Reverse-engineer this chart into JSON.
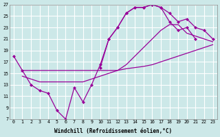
{
  "xlabel": "Windchill (Refroidissement éolien,°C)",
  "bg_color": "#cce8e8",
  "line_color": "#990099",
  "grid_color": "#ffffff",
  "xlim": [
    -0.5,
    23.5
  ],
  "ylim": [
    7,
    27
  ],
  "yticks": [
    7,
    9,
    11,
    13,
    15,
    17,
    19,
    21,
    23,
    25,
    27
  ],
  "xticks": [
    0,
    1,
    2,
    3,
    4,
    5,
    6,
    7,
    8,
    9,
    10,
    11,
    12,
    13,
    14,
    15,
    16,
    17,
    18,
    19,
    20,
    21,
    22,
    23
  ],
  "line1_x": [
    0,
    1,
    2,
    3,
    4,
    5,
    6,
    7,
    8,
    9,
    10,
    11,
    12,
    13,
    14,
    15,
    16,
    17,
    18,
    19,
    20,
    21
  ],
  "line1_y": [
    18.0,
    15.5,
    13.0,
    12.0,
    11.5,
    8.5,
    7.0,
    12.5,
    10.0,
    13.0,
    16.5,
    21.0,
    23.0,
    25.5,
    26.5,
    26.5,
    27.0,
    26.5,
    24.0,
    22.5,
    23.0,
    21.0
  ],
  "line2_x": [
    1,
    2,
    3,
    4,
    5,
    6,
    7,
    8,
    9,
    10,
    11,
    12,
    13,
    14,
    15,
    16,
    17,
    18,
    19,
    20,
    21,
    22,
    23
  ],
  "line2_y": [
    15.5,
    15.5,
    15.5,
    15.5,
    15.5,
    15.5,
    15.5,
    15.5,
    15.5,
    15.5,
    15.5,
    15.5,
    15.8,
    16.0,
    16.2,
    16.5,
    17.0,
    17.5,
    18.0,
    18.5,
    19.0,
    19.5,
    20.0
  ],
  "line3_x": [
    1,
    2,
    3,
    4,
    5,
    6,
    7,
    8,
    9,
    10,
    11,
    12,
    13,
    14,
    15,
    16,
    17,
    18,
    19,
    20,
    21,
    22,
    23
  ],
  "line3_y": [
    14.5,
    14.0,
    13.5,
    13.5,
    13.5,
    13.5,
    13.5,
    13.5,
    14.0,
    14.5,
    15.0,
    15.5,
    16.5,
    18.0,
    19.5,
    21.0,
    22.5,
    23.5,
    23.5,
    22.0,
    21.5,
    21.0,
    20.5
  ],
  "line4_x": [
    10,
    11,
    12,
    13,
    14,
    15,
    16,
    17,
    18,
    19,
    20,
    21,
    22,
    23
  ],
  "line4_y": [
    16.0,
    21.0,
    23.0,
    25.5,
    26.5,
    26.5,
    27.0,
    26.5,
    25.5,
    24.0,
    24.5,
    23.0,
    22.5,
    21.0
  ]
}
